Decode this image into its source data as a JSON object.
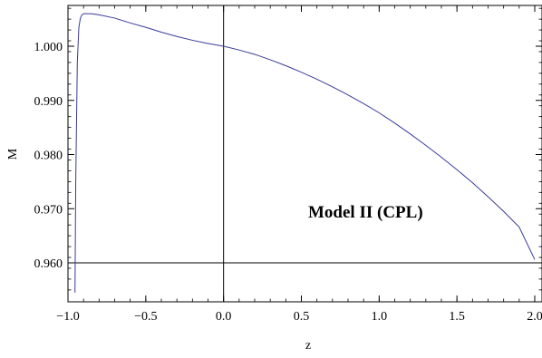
{
  "chart_data": {
    "type": "line",
    "title": "",
    "xlabel": "z",
    "ylabel": "M",
    "xlim": [
      -1.0,
      2.0
    ],
    "ylim": [
      0.954,
      1.007
    ],
    "x_ticks": [
      -1.0,
      -0.5,
      0.0,
      0.5,
      1.0,
      1.5,
      2.0
    ],
    "x_tick_labels": [
      "−1.0",
      "−0.5",
      "0.0",
      "0.5",
      "1.0",
      "1.5",
      "2.0"
    ],
    "y_ticks": [
      0.96,
      0.97,
      0.98,
      0.99,
      1.0
    ],
    "y_tick_labels": [
      "0.960",
      "0.970",
      "0.980",
      "0.990",
      "1.000"
    ],
    "grid": false,
    "annotation": "Model II (CPL)",
    "reference_lines": {
      "vertical_x": 0.0,
      "horizontal_y": 0.96
    },
    "series": [
      {
        "color": "#3a3a9a",
        "x": [
          -0.955,
          -0.95,
          -0.94,
          -0.93,
          -0.92,
          -0.91,
          -0.9,
          -0.88,
          -0.85,
          -0.8,
          -0.7,
          -0.6,
          -0.5,
          -0.4,
          -0.3,
          -0.2,
          -0.1,
          0.0,
          0.1,
          0.2,
          0.3,
          0.4,
          0.5,
          0.6,
          0.7,
          0.8,
          0.9,
          1.0,
          1.1,
          1.2,
          1.3,
          1.4,
          1.5,
          1.6,
          1.7,
          1.8,
          1.9,
          2.0
        ],
        "y": [
          0.9545,
          0.975,
          0.997,
          1.0035,
          1.0052,
          1.0058,
          1.006,
          1.006,
          1.006,
          1.0058,
          1.0052,
          1.0043,
          1.0035,
          1.0026,
          1.0018,
          1.0011,
          1.0005,
          1.0,
          0.9993,
          0.9985,
          0.9975,
          0.9964,
          0.9952,
          0.9939,
          0.9925,
          0.991,
          0.9894,
          0.9877,
          0.9858,
          0.9838,
          0.9817,
          0.9795,
          0.9772,
          0.9748,
          0.9722,
          0.9695,
          0.9666,
          0.9606
        ]
      }
    ]
  }
}
